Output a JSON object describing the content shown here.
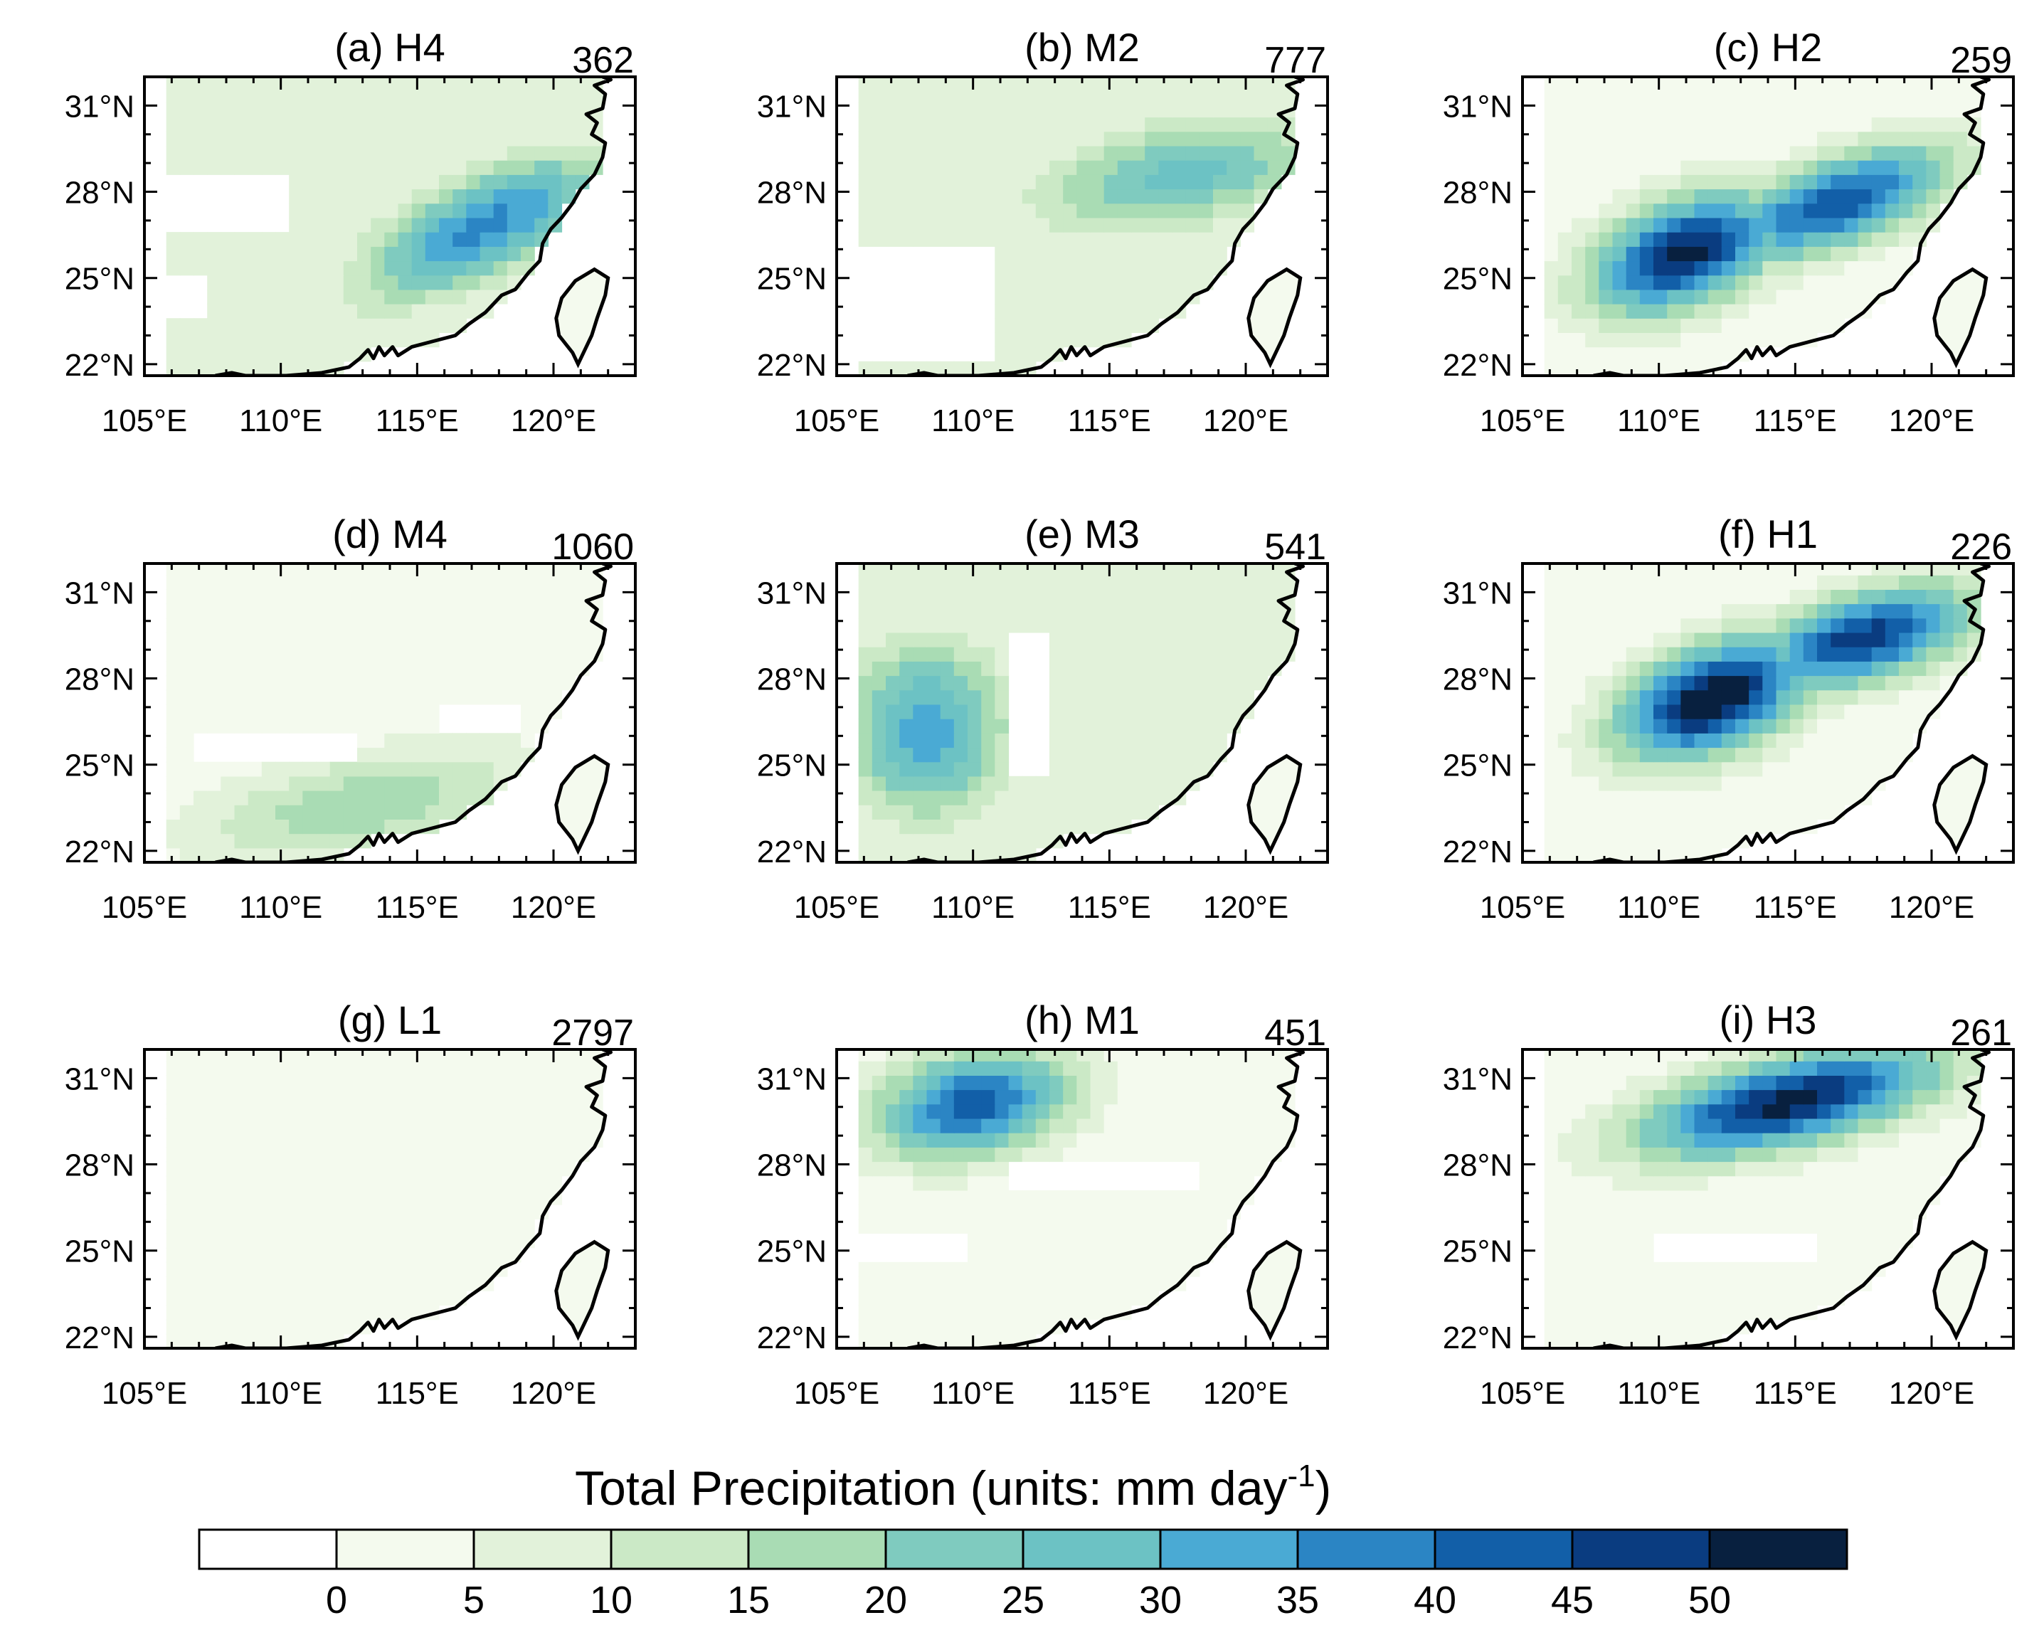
{
  "figure": {
    "colorbar_title": "Total Precipitation (units: mm day",
    "colorbar_title_sup": "-1",
    "colorbar_title_close": ")",
    "colorbar_levels": [
      "0",
      "5",
      "10",
      "15",
      "20",
      "25",
      "30",
      "35",
      "40",
      "45",
      "50"
    ],
    "colorbar_colors": [
      "#ffffff",
      "#f4faee",
      "#e2f2da",
      "#cbe9c6",
      "#a9dcb4",
      "#7fcbbf",
      "#6cc2c4",
      "#4aaad4",
      "#2b85c4",
      "#125fa8",
      "#0a3c80",
      "#08203f"
    ]
  },
  "axes": {
    "lon_ticks": [
      "105°E",
      "110°E",
      "115°E",
      "120°E"
    ],
    "lon_values": [
      105,
      110,
      115,
      120
    ],
    "lat_ticks": [
      "31°N",
      "28°N",
      "25°N",
      "22°N"
    ],
    "lat_values": [
      31,
      28,
      25,
      22
    ],
    "lon_range": [
      105,
      123
    ],
    "lat_range": [
      21.6,
      32
    ]
  },
  "chart_data": {
    "type": "heatmap",
    "variable": "Total Precipitation",
    "units": "mm day-1",
    "level_edges": [
      0,
      5,
      10,
      15,
      20,
      25,
      30,
      35,
      40,
      45,
      50
    ],
    "panels": [
      {
        "id": "a",
        "title": "(a) H4",
        "count": "362",
        "rain_core": [
          {
            "lon": 117.5,
            "lat": 26.8,
            "peak": 37,
            "sx": 3.6,
            "sy": 1.3,
            "tilt": 24
          }
        ],
        "background_level": 10,
        "dry_zones": [
          {
            "lon": 108,
            "lat": 27.5,
            "w": 5,
            "h": 2
          },
          {
            "lon": 106,
            "lat": 24.5,
            "w": 2.5,
            "h": 1.6
          }
        ]
      },
      {
        "id": "b",
        "title": "(b) M2",
        "count": "777",
        "rain_core": [
          {
            "lon": 117.6,
            "lat": 28.6,
            "peak": 27,
            "sx": 4,
            "sy": 1.4,
            "tilt": 10
          }
        ],
        "background_level": 10,
        "dry_zones": [
          {
            "lon": 108.5,
            "lat": 24,
            "w": 5,
            "h": 4
          }
        ]
      },
      {
        "id": "c",
        "title": "(c) H2",
        "count": "259",
        "rain_core": [
          {
            "lon": 111,
            "lat": 25.9,
            "peak": 52,
            "sx": 2.6,
            "sy": 1.3,
            "tilt": 20
          },
          {
            "lon": 116.5,
            "lat": 27.6,
            "peak": 45,
            "sx": 3.2,
            "sy": 1.1,
            "tilt": 18
          }
        ],
        "background_level": 5,
        "dry_zones": []
      },
      {
        "id": "d",
        "title": "(d) M4",
        "count": "1060",
        "rain_core": [
          {
            "lon": 113,
            "lat": 23.6,
            "peak": 19,
            "sx": 4.5,
            "sy": 1.3,
            "tilt": 10
          }
        ],
        "background_level": 5,
        "dry_zones": [
          {
            "lon": 110,
            "lat": 25.8,
            "w": 6,
            "h": 0.9
          },
          {
            "lon": 117.5,
            "lat": 26.8,
            "w": 3,
            "h": 1
          }
        ]
      },
      {
        "id": "e",
        "title": "(e) M3",
        "count": "541",
        "rain_core": [
          {
            "lon": 108.3,
            "lat": 26.2,
            "peak": 33,
            "sx": 2.2,
            "sy": 2.3,
            "tilt": 0
          }
        ],
        "background_level": 10,
        "dry_zones": [
          {
            "lon": 112,
            "lat": 27,
            "w": 1.5,
            "h": 5
          }
        ]
      },
      {
        "id": "f",
        "title": "(f) H1",
        "count": "226",
        "rain_core": [
          {
            "lon": 112,
            "lat": 27.3,
            "peak": 56,
            "sx": 2.6,
            "sy": 1.3,
            "tilt": 20
          },
          {
            "lon": 117.5,
            "lat": 29.4,
            "peak": 48,
            "sx": 3,
            "sy": 1.1,
            "tilt": 15
          }
        ],
        "background_level": 5,
        "dry_zones": []
      },
      {
        "id": "g",
        "title": "(g) L1",
        "count": "2797",
        "rain_core": [],
        "background_level": 5,
        "dry_zones": []
      },
      {
        "id": "h",
        "title": "(h) M1",
        "count": "451",
        "rain_core": [
          {
            "lon": 110,
            "lat": 30.1,
            "peak": 43,
            "sx": 2.6,
            "sy": 1.3,
            "tilt": 10
          }
        ],
        "background_level": 5,
        "dry_zones": [
          {
            "lon": 115,
            "lat": 27.5,
            "w": 7,
            "h": 1
          },
          {
            "lon": 108,
            "lat": 25,
            "w": 4,
            "h": 1
          }
        ]
      },
      {
        "id": "i",
        "title": "(i) H3",
        "count": "261",
        "rain_core": [
          {
            "lon": 114.8,
            "lat": 30.2,
            "peak": 52,
            "sx": 4,
            "sy": 1.1,
            "tilt": 12
          }
        ],
        "background_level": 5,
        "dry_zones": [
          {
            "lon": 113,
            "lat": 25,
            "w": 6,
            "h": 1.2
          }
        ]
      }
    ]
  }
}
